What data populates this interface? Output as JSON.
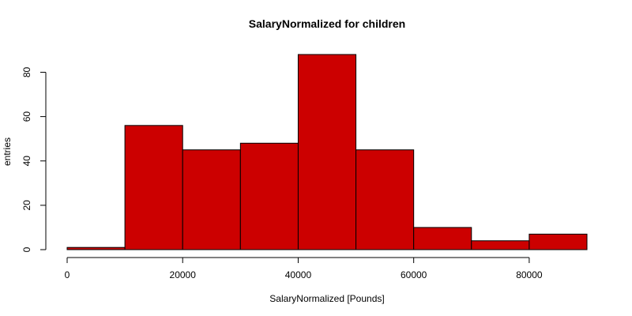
{
  "chart_data": {
    "type": "bar",
    "subtype": "histogram",
    "title": "SalaryNormalized for children",
    "xlabel": "SalaryNormalized [Pounds]",
    "ylabel": "entries",
    "bins": [
      {
        "start": 0,
        "end": 10000,
        "value": 1
      },
      {
        "start": 10000,
        "end": 20000,
        "value": 56
      },
      {
        "start": 20000,
        "end": 30000,
        "value": 45
      },
      {
        "start": 30000,
        "end": 40000,
        "value": 48
      },
      {
        "start": 40000,
        "end": 50000,
        "value": 88
      },
      {
        "start": 50000,
        "end": 60000,
        "value": 45
      },
      {
        "start": 60000,
        "end": 70000,
        "value": 10
      },
      {
        "start": 70000,
        "end": 80000,
        "value": 4
      },
      {
        "start": 80000,
        "end": 90000,
        "value": 7
      }
    ],
    "xlim": [
      0,
      90000
    ],
    "ylim": [
      0,
      88
    ],
    "x_ticks": [
      0,
      20000,
      40000,
      60000,
      80000
    ],
    "y_ticks": [
      0,
      20,
      40,
      60,
      80
    ],
    "bar_color": "#cc0000",
    "grid": false,
    "legend": "none"
  }
}
